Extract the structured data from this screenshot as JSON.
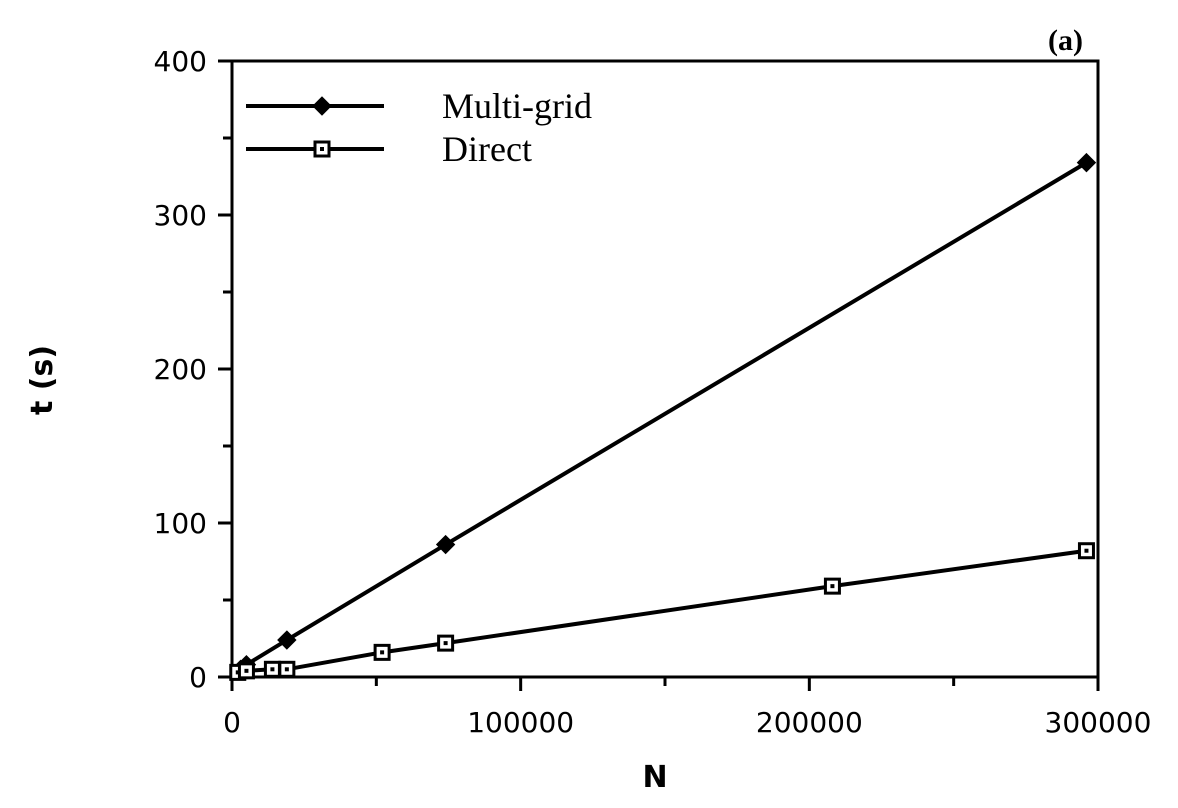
{
  "chart_data": {
    "type": "line",
    "panel_label": "(a)",
    "xlabel": "N",
    "ylabel": "t  (s)",
    "xlim": [
      0,
      300000
    ],
    "ylim": [
      0,
      400
    ],
    "x_ticks": [
      0,
      100000,
      200000,
      300000
    ],
    "x_tick_labels": [
      "0",
      "100000",
      "200000",
      "300000"
    ],
    "y_ticks": [
      0,
      100,
      200,
      300,
      400
    ],
    "y_tick_labels": [
      "0",
      "100",
      "200",
      "300",
      "400"
    ],
    "grid": false,
    "legend_position": "top-left",
    "series": [
      {
        "name": "Multi-grid",
        "marker": "filled-diamond",
        "color": "#000000",
        "points": [
          [
            3000,
            5
          ],
          [
            5000,
            8
          ],
          [
            19000,
            24
          ],
          [
            74000,
            86
          ],
          [
            296000,
            334
          ]
        ]
      },
      {
        "name": "Direct",
        "marker": "open-square",
        "color": "#000000",
        "points": [
          [
            2000,
            3
          ],
          [
            5000,
            4
          ],
          [
            14000,
            5
          ],
          [
            19000,
            5
          ],
          [
            52000,
            16
          ],
          [
            74000,
            22
          ],
          [
            208000,
            59
          ],
          [
            296000,
            82
          ]
        ]
      }
    ]
  }
}
